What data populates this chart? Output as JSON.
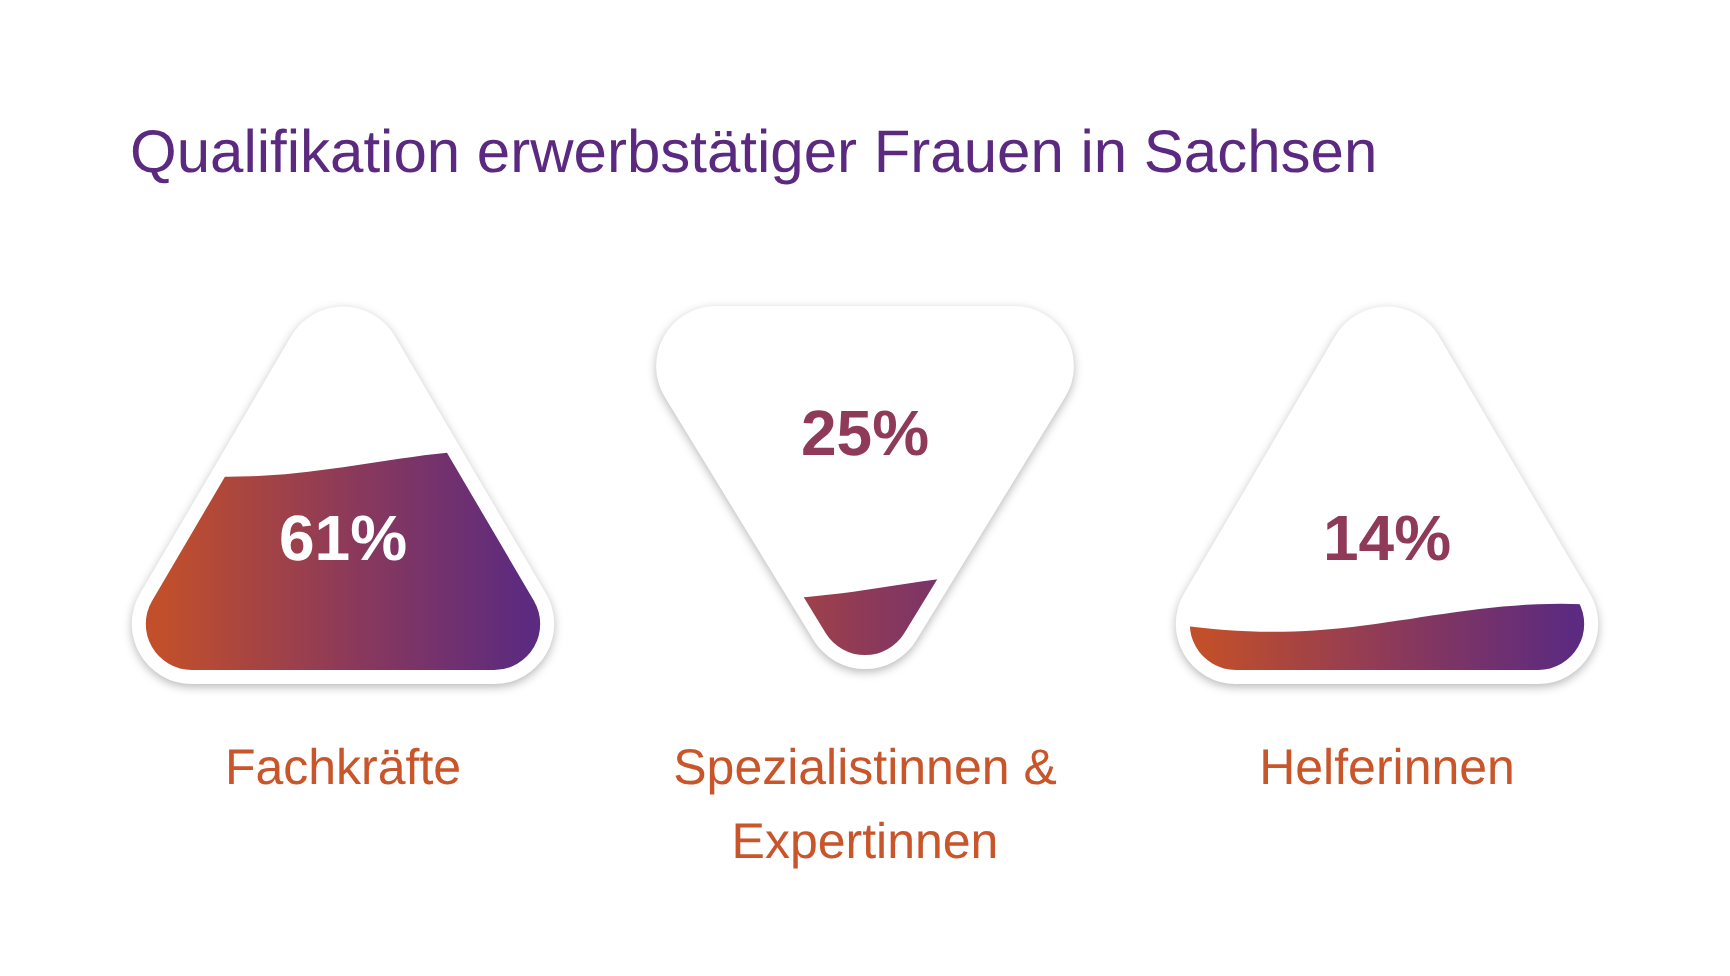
{
  "chart_data": {
    "type": "other",
    "title": "Qualifikation erwerbstätiger Frauen in Sachsen",
    "categories": [
      "Fachkräfte",
      "Spezialistinnen & Expertinnen",
      "Helferinnen"
    ],
    "values": [
      61,
      25,
      14
    ],
    "value_labels": [
      "61%",
      "25%",
      "14%"
    ],
    "color": "#8e3a58"
  }
}
